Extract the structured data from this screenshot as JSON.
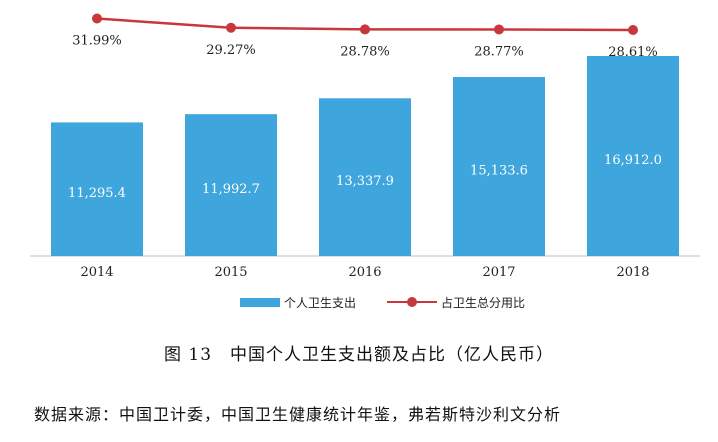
{
  "chart_data": {
    "type": "bar",
    "categories": [
      "2014",
      "2015",
      "2016",
      "2017",
      "2018"
    ],
    "series": [
      {
        "name": "个人卫生支出",
        "type": "bar",
        "values": [
          11295.4,
          11992.7,
          13337.9,
          15133.6,
          16912.0
        ],
        "labels": [
          "11,295.4",
          "11,992.7",
          "13,337.9",
          "15,133.6",
          "16,912.0"
        ],
        "color": "#3ea6dc"
      },
      {
        "name": "占卫生总分用比",
        "type": "line",
        "values": [
          31.99,
          29.27,
          28.78,
          28.77,
          28.61
        ],
        "labels": [
          "31.99%",
          "29.27%",
          "28.78%",
          "28.77%",
          "28.61%"
        ],
        "color": "#c8373a"
      }
    ],
    "title": "图 13　中国个人卫生支出额及占比（亿人民币）",
    "legend": "bottom",
    "grid": false
  },
  "source": "数据来源：中国卫计委，中国卫生健康统计年鉴，弗若斯特沙利文分析"
}
